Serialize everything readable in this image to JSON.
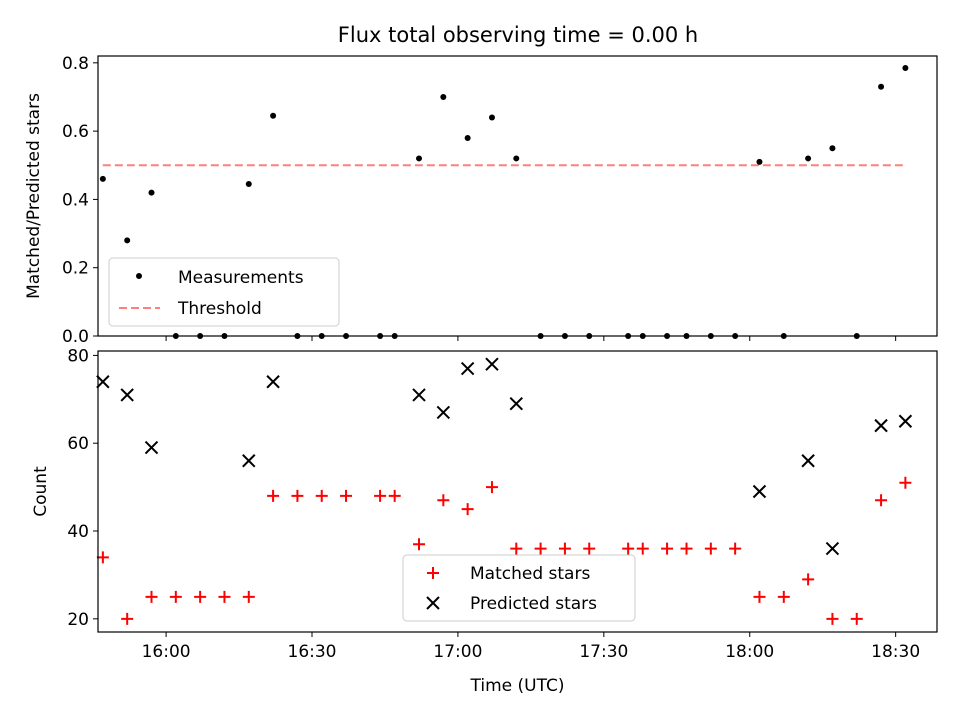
{
  "figure": {
    "title": "Flux total observing time = 0.00 h"
  },
  "chart_data": [
    {
      "type": "scatter",
      "title": "Flux total observing time = 0.00 h",
      "xlabel": "",
      "ylabel": "Matched/Predicted stars",
      "xlim": [
        "15:46:00",
        "18:38:30"
      ],
      "ylim": [
        0,
        0.82
      ],
      "yticks": [
        0.0,
        0.2,
        0.4,
        0.6,
        0.8
      ],
      "ytick_labels": [
        "0.0",
        "0.2",
        "0.4",
        "0.6",
        "0.8"
      ],
      "legend_position": "lower left",
      "colors": {
        "measurements": "#000000",
        "threshold": "#ff7f7f"
      },
      "series": [
        {
          "name": "Measurements",
          "marker": "dot",
          "x": [
            "15:47",
            "15:52",
            "15:57",
            "16:02",
            "16:07",
            "16:12",
            "16:17",
            "16:22",
            "16:27",
            "16:32",
            "16:37",
            "16:44",
            "16:47",
            "16:52",
            "16:57",
            "17:02",
            "17:07",
            "17:12",
            "17:17",
            "17:22",
            "17:27",
            "17:35",
            "17:38",
            "17:43",
            "17:47",
            "17:52",
            "17:57",
            "18:02",
            "18:07",
            "18:12",
            "18:17",
            "18:22",
            "18:27",
            "18:32"
          ],
          "y": [
            0.46,
            0.28,
            0.42,
            0,
            0,
            0,
            0.445,
            0.645,
            0,
            0,
            0,
            0,
            0,
            0.52,
            0.7,
            0.58,
            0.64,
            0.52,
            0,
            0,
            0,
            0,
            0,
            0,
            0,
            0,
            0,
            0.51,
            0,
            0.52,
            0.55,
            0,
            0.73,
            0.785
          ]
        },
        {
          "name": "Threshold",
          "style": "dashed",
          "x": [
            "15:47",
            "18:32"
          ],
          "y": [
            0.5,
            0.5
          ]
        }
      ]
    },
    {
      "type": "scatter",
      "xlabel": "Time (UTC)",
      "ylabel": "Count",
      "xlim": [
        "15:46:00",
        "18:38:30"
      ],
      "ylim": [
        17,
        81
      ],
      "xticks": [
        "16:00",
        "16:30",
        "17:00",
        "17:30",
        "18:00",
        "18:30"
      ],
      "yticks": [
        20,
        40,
        60,
        80
      ],
      "ytick_labels": [
        "20",
        "40",
        "60",
        "80"
      ],
      "legend_position": "lower center",
      "colors": {
        "matched": "#ff0000",
        "predicted": "#000000"
      },
      "series": [
        {
          "name": "Matched stars",
          "marker": "plus",
          "x": [
            "15:47",
            "15:52",
            "15:57",
            "16:02",
            "16:07",
            "16:12",
            "16:17",
            "16:22",
            "16:27",
            "16:32",
            "16:37",
            "16:44",
            "16:47",
            "16:52",
            "16:57",
            "17:02",
            "17:07",
            "17:12",
            "17:17",
            "17:22",
            "17:27",
            "17:35",
            "17:38",
            "17:43",
            "17:47",
            "17:52",
            "17:57",
            "18:02",
            "18:07",
            "18:12",
            "18:17",
            "18:22",
            "18:27",
            "18:32"
          ],
          "y": [
            34,
            20,
            25,
            25,
            25,
            25,
            25,
            48,
            48,
            48,
            48,
            48,
            48,
            37,
            47,
            45,
            50,
            36,
            36,
            36,
            36,
            36,
            36,
            36,
            36,
            36,
            36,
            25,
            25,
            29,
            20,
            20,
            47,
            51
          ]
        },
        {
          "name": "Predicted stars",
          "marker": "x",
          "x": [
            "15:47",
            "15:52",
            "15:57",
            "16:17",
            "16:22",
            "16:52",
            "16:57",
            "17:02",
            "17:07",
            "17:12",
            "18:02",
            "18:12",
            "18:17",
            "18:27",
            "18:32"
          ],
          "y": [
            74,
            71,
            59,
            56,
            74,
            71,
            67,
            77,
            78,
            69,
            49,
            56,
            36,
            64,
            65
          ]
        }
      ]
    }
  ]
}
